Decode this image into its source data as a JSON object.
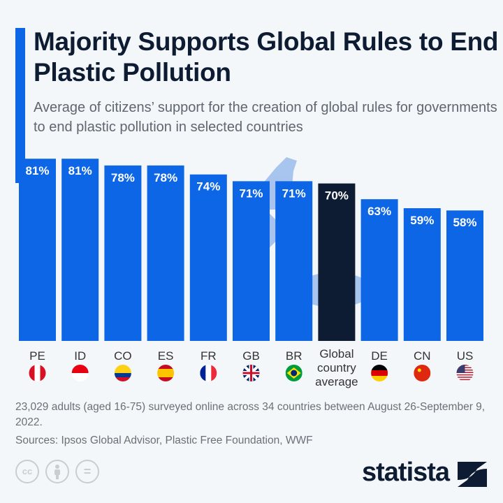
{
  "title": "Majority Supports Global Rules to End Plastic Pollution",
  "subtitle": "Average of citizens’ support for the creation of global rules for governments to end plastic pollution in selected countries",
  "colors": {
    "bar": "#0d66e6",
    "highlight": "#0e1c33",
    "accent": "#0d66e6",
    "background": "#f4f7fa"
  },
  "chart_data": {
    "type": "bar",
    "categories": [
      "PE",
      "ID",
      "CO",
      "ES",
      "FR",
      "GB",
      "BR",
      "Global country average",
      "DE",
      "CN",
      "US"
    ],
    "values": [
      81,
      81,
      78,
      78,
      74,
      71,
      71,
      70,
      63,
      59,
      58
    ],
    "data_labels": [
      "81%",
      "81%",
      "78%",
      "78%",
      "74%",
      "71%",
      "71%",
      "70%",
      "63%",
      "59%",
      "58%"
    ],
    "highlighted_category": "Global country average",
    "unit": "%",
    "ylim": [
      0,
      100
    ],
    "grid": false,
    "legend": "none",
    "flags": [
      "peru-flag",
      "indonesia-flag",
      "colombia-flag",
      "spain-flag",
      "france-flag",
      "uk-flag",
      "brazil-flag",
      null,
      "germany-flag",
      "china-flag",
      "usa-flag"
    ]
  },
  "footer": {
    "note": "23,029 adults (aged 16-75) surveyed online across 34 countries between August 26-September 9, 2022.",
    "sources": "Sources: Ipsos Global Advisor, Plastic Free Foundation, WWF",
    "license_icons": [
      "cc-icon",
      "attribution-icon",
      "no-derivatives-icon"
    ],
    "cc_label": "cc",
    "nd_label": "=",
    "logo": "statista"
  }
}
